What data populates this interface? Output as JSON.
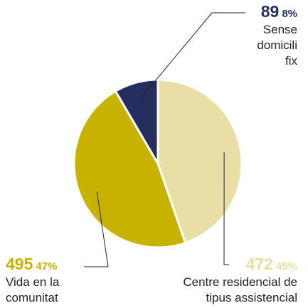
{
  "chart_data": {
    "type": "pie",
    "categories": [
      "Centre residencial de tipus assistencial",
      "Vida en la comunitat",
      "Sense domicili fix"
    ],
    "values": [
      472,
      495,
      89
    ],
    "percent_labels": [
      "45%",
      "47%",
      "8%"
    ],
    "colors": [
      "#e9dea5",
      "#c8b200",
      "#252f5f"
    ]
  }
}
